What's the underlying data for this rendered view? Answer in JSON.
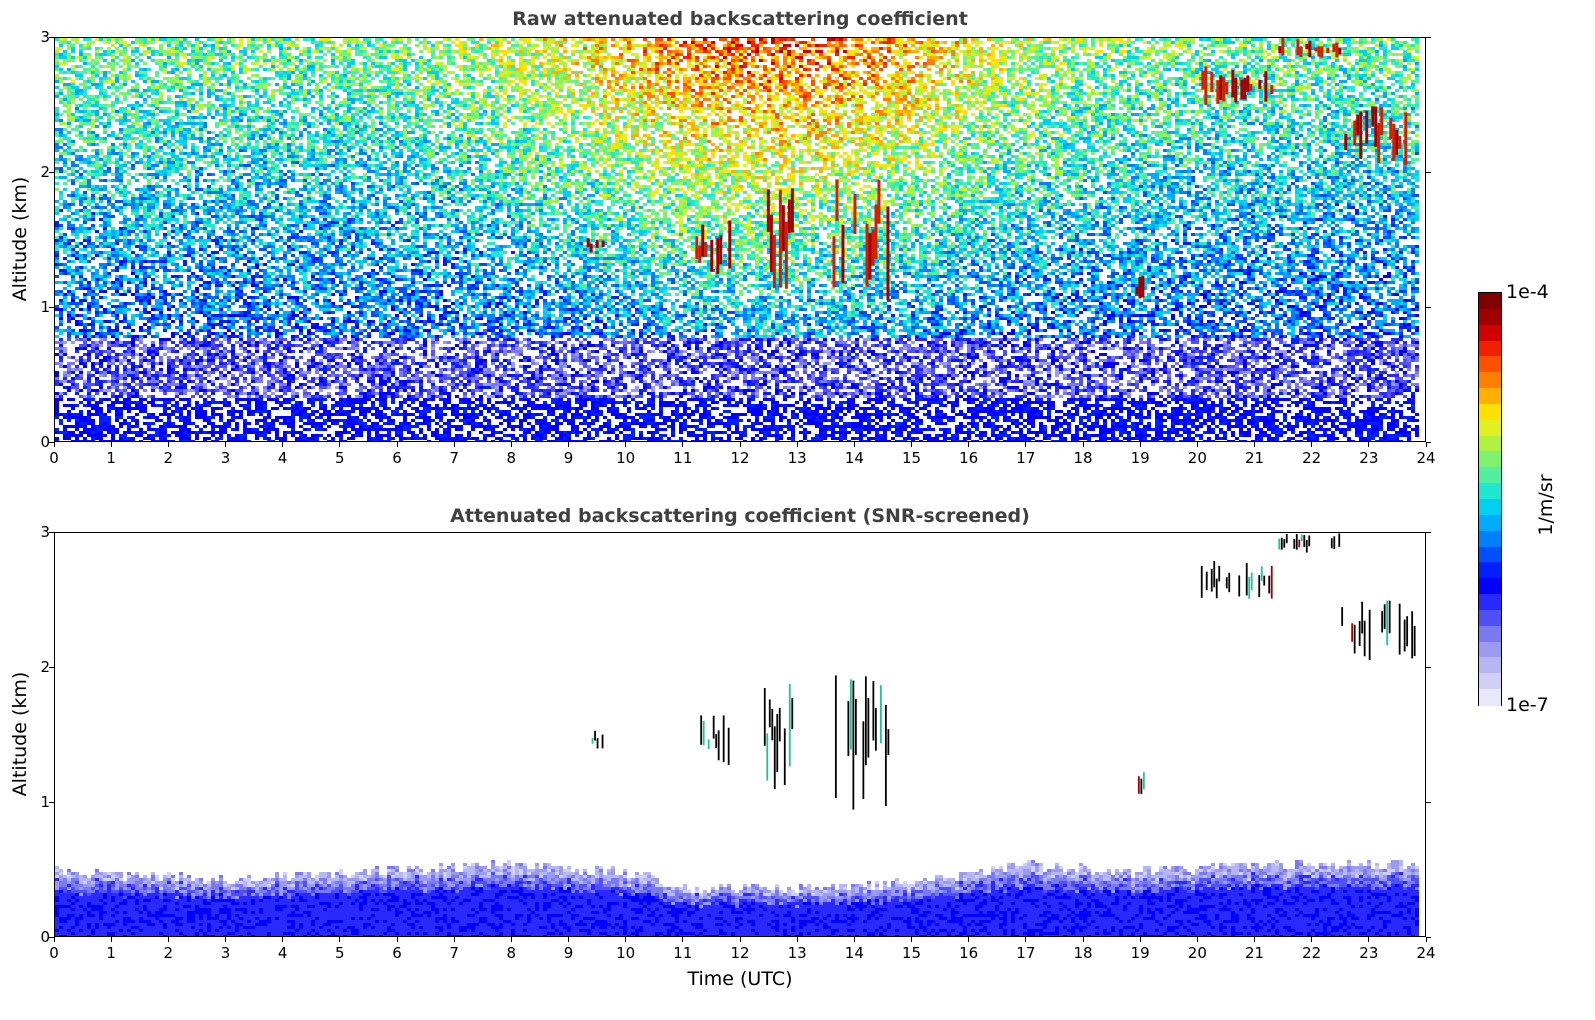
{
  "chart_data": [
    {
      "type": "heatmap",
      "title": "Raw attenuated backscattering coefficient",
      "xlabel": "",
      "ylabel": "Altitude (km)",
      "xlim": [
        0,
        24
      ],
      "ylim": [
        0,
        3
      ],
      "xticks": [
        "0",
        "1",
        "2",
        "3",
        "4",
        "5",
        "6",
        "7",
        "8",
        "9",
        "10",
        "11",
        "12",
        "13",
        "14",
        "15",
        "16",
        "17",
        "18",
        "19",
        "20",
        "21",
        "22",
        "23",
        "24"
      ],
      "yticks": [
        "0",
        "1",
        "2",
        "3"
      ],
      "data_end_hour": 23.8,
      "color_scale": "log",
      "clim": [
        1e-07,
        0.0001
      ],
      "colormap": "jet",
      "features": [
        {
          "kind": "boundary_layer",
          "altitude_top_km": 0.35
        },
        {
          "kind": "cloud",
          "time_start": 9.3,
          "time_end": 9.6,
          "alt_bottom": 1.4,
          "alt_top": 1.55
        },
        {
          "kind": "cloud",
          "time_start": 11.2,
          "time_end": 11.8,
          "alt_bottom": 1.25,
          "alt_top": 1.65
        },
        {
          "kind": "cloud",
          "time_start": 12.4,
          "time_end": 13.0,
          "alt_bottom": 1.1,
          "alt_top": 1.9
        },
        {
          "kind": "cloud",
          "time_start": 13.6,
          "time_end": 14.6,
          "alt_bottom": 0.95,
          "alt_top": 2.0
        },
        {
          "kind": "cloud",
          "time_start": 18.9,
          "time_end": 19.05,
          "alt_bottom": 1.05,
          "alt_top": 1.25
        },
        {
          "kind": "cloud",
          "time_start": 20.0,
          "time_end": 21.3,
          "alt_bottom": 2.5,
          "alt_top": 2.8
        },
        {
          "kind": "cloud",
          "time_start": 21.4,
          "time_end": 22.5,
          "alt_bottom": 2.85,
          "alt_top": 3.0
        },
        {
          "kind": "cloud",
          "time_start": 22.5,
          "time_end": 23.8,
          "alt_bottom": 2.05,
          "alt_top": 2.5
        }
      ]
    },
    {
      "type": "heatmap",
      "title": "Attenuated backscattering coefficient (SNR-screened)",
      "xlabel": "Time (UTC)",
      "ylabel": "Altitude (km)",
      "xlim": [
        0,
        24
      ],
      "ylim": [
        0,
        3
      ],
      "xticks": [
        "0",
        "1",
        "2",
        "3",
        "4",
        "5",
        "6",
        "7",
        "8",
        "9",
        "10",
        "11",
        "12",
        "13",
        "14",
        "15",
        "16",
        "17",
        "18",
        "19",
        "20",
        "21",
        "22",
        "23",
        "24"
      ],
      "yticks": [
        "0",
        "1",
        "2",
        "3"
      ],
      "data_end_hour": 23.8,
      "color_scale": "log",
      "clim": [
        1e-07,
        0.0001
      ],
      "colormap": "jet",
      "boundary_layer_top_km": [
        {
          "t": 0,
          "alt": 0.5
        },
        {
          "t": 3,
          "alt": 0.45
        },
        {
          "t": 5,
          "alt": 0.5
        },
        {
          "t": 8,
          "alt": 0.55
        },
        {
          "t": 10,
          "alt": 0.5
        },
        {
          "t": 11,
          "alt": 0.38
        },
        {
          "t": 13,
          "alt": 0.38
        },
        {
          "t": 15,
          "alt": 0.42
        },
        {
          "t": 17,
          "alt": 0.55
        },
        {
          "t": 19,
          "alt": 0.5
        },
        {
          "t": 21,
          "alt": 0.55
        },
        {
          "t": 23.8,
          "alt": 0.55
        }
      ]
    }
  ],
  "colorbar": {
    "label": "1/m/sr",
    "max_label": "1e-4",
    "min_label": "1e-7",
    "colors": [
      "#e8e8fa",
      "#d0d0f6",
      "#b6b6f2",
      "#9a9aee",
      "#7a7aee",
      "#5050f5",
      "#2a2aff",
      "#0000ff",
      "#0020ff",
      "#0050ff",
      "#0080ff",
      "#00aaff",
      "#00d0f0",
      "#20e8d0",
      "#50f0a0",
      "#80f070",
      "#b0f040",
      "#e0f020",
      "#ffe000",
      "#ffb000",
      "#ff8000",
      "#ff5000",
      "#f02000",
      "#d00000",
      "#a00000",
      "#800000"
    ]
  }
}
